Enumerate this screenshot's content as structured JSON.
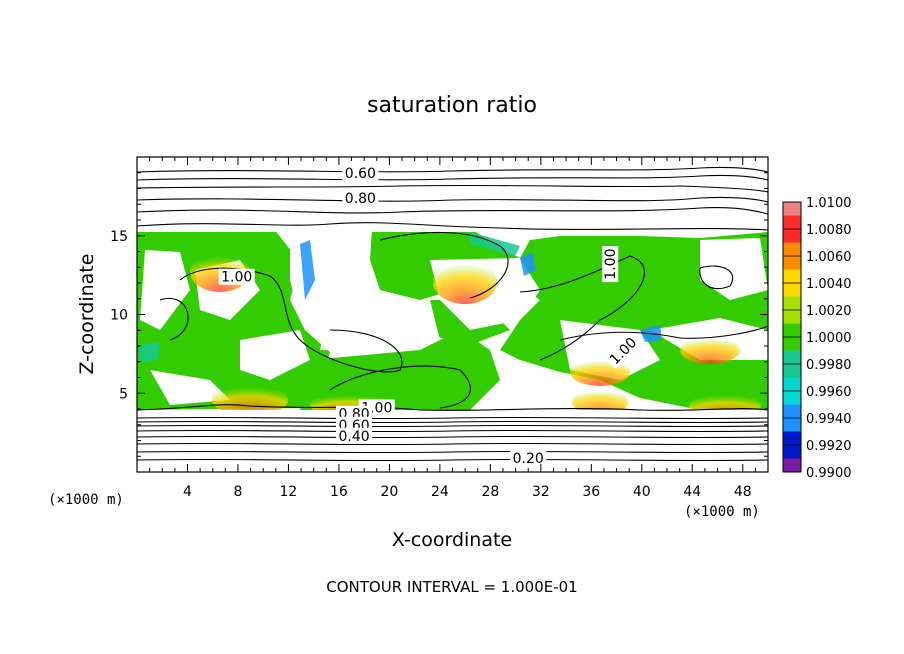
{
  "chart_data": {
    "type": "contour",
    "title": "saturation ratio",
    "xlabel": "X-coordinate",
    "ylabel": "Z-coordinate",
    "x_unit": "(×1000 m)",
    "z_unit": "(×1000 m)",
    "xlim": [
      0,
      50
    ],
    "ylim": [
      0,
      20
    ],
    "x_ticks": [
      4,
      8,
      12,
      16,
      20,
      24,
      28,
      32,
      36,
      40,
      44,
      48
    ],
    "y_ticks": [
      5,
      10,
      15
    ],
    "colorbar": {
      "levels": [
        "1.0100",
        "1.0080",
        "1.0060",
        "1.0040",
        "1.0020",
        "1.0000",
        "0.9980",
        "0.9960",
        "0.9940",
        "0.9920",
        "0.9900"
      ],
      "colors": [
        "#f08080",
        "#ff2a2a",
        "#ff8c00",
        "#ffd700",
        "#a6e000",
        "#33cc00",
        "#18c890",
        "#00d8d0",
        "#1e90ff",
        "#0018c8",
        "#7a1aa0"
      ]
    },
    "contour_labels": [
      {
        "text": "0.60",
        "x": 17.7,
        "z": 19.0
      },
      {
        "text": "0.80",
        "x": 17.7,
        "z": 17.4
      },
      {
        "text": "1.00",
        "x": 7.9,
        "z": 12.4
      },
      {
        "text": "1.00",
        "x": 37.5,
        "z": 13.2
      },
      {
        "text": "1.00",
        "x": 38.5,
        "z": 7.7
      },
      {
        "text": "1.00",
        "x": 19.0,
        "z": 4.1
      },
      {
        "text": "0.80",
        "x": 17.2,
        "z": 3.7
      },
      {
        "text": "0.60",
        "x": 17.2,
        "z": 3.0
      },
      {
        "text": "0.40",
        "x": 17.2,
        "z": 2.3
      },
      {
        "text": "0.20",
        "x": 31.0,
        "z": 0.9
      }
    ],
    "contour_interval_text": "CONTOUR INTERVAL = 1.000E-01"
  }
}
